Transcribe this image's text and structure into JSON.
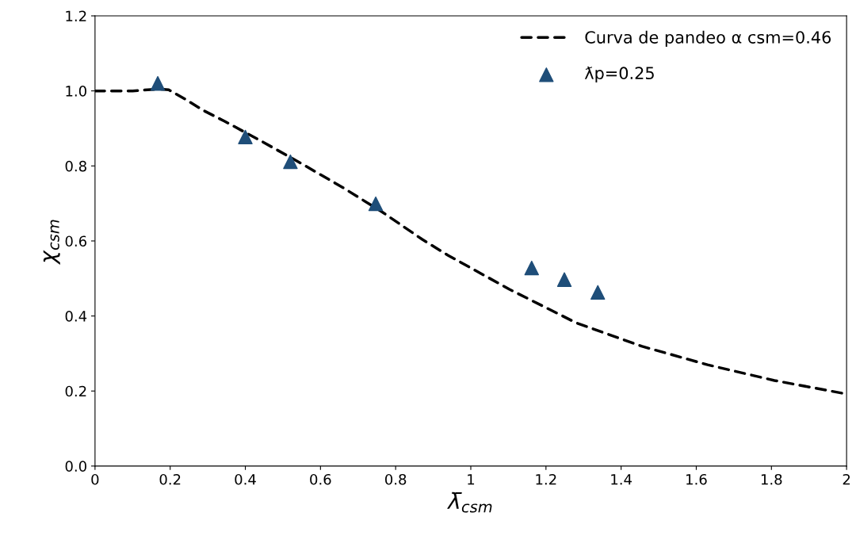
{
  "chart_data": {
    "type": "scatter",
    "xlabel": "λ̄$_{csm}$",
    "ylabel": "χ$_{csm}$",
    "series": [
      {
        "name": "Curva de pandeo α csm=0.46",
        "type": "line",
        "color": "#000000",
        "line_style": "dashed",
        "marker": "none",
        "x": [
          0,
          0.1,
          0.17,
          0.196,
          0.24,
          0.29,
          0.345,
          0.45,
          0.555,
          0.66,
          0.766,
          0.871,
          0.939,
          1.103,
          1.28,
          1.456,
          1.63,
          1.808,
          2.0
        ],
        "values": [
          1.0,
          1.0,
          1.005,
          1.003,
          0.978,
          0.947,
          0.919,
          0.862,
          0.803,
          0.742,
          0.676,
          0.604,
          0.562,
          0.471,
          0.382,
          0.319,
          0.27,
          0.228,
          0.192
        ]
      },
      {
        "name": "ƛp=0.25",
        "color": "#1f4e79",
        "marker": "triangle",
        "x": [
          0.167,
          0.4,
          0.52,
          0.747,
          1.162,
          1.249,
          1.338
        ],
        "values": [
          1.02,
          0.877,
          0.811,
          0.699,
          0.528,
          0.497,
          0.463
        ]
      }
    ],
    "xlim": [
      0,
      2
    ],
    "xticks": [
      0,
      0.2,
      0.4,
      0.6,
      0.8,
      1,
      1.2,
      1.4,
      1.6,
      1.8,
      2
    ],
    "ylim": [
      0,
      1.2
    ],
    "yticks": [
      {
        "value": 0,
        "label": "0.0"
      },
      0.2,
      0.4,
      0.6,
      0.8,
      {
        "value": 1,
        "label": "1.0"
      },
      1.2
    ],
    "grid": false,
    "legend": "top right"
  }
}
